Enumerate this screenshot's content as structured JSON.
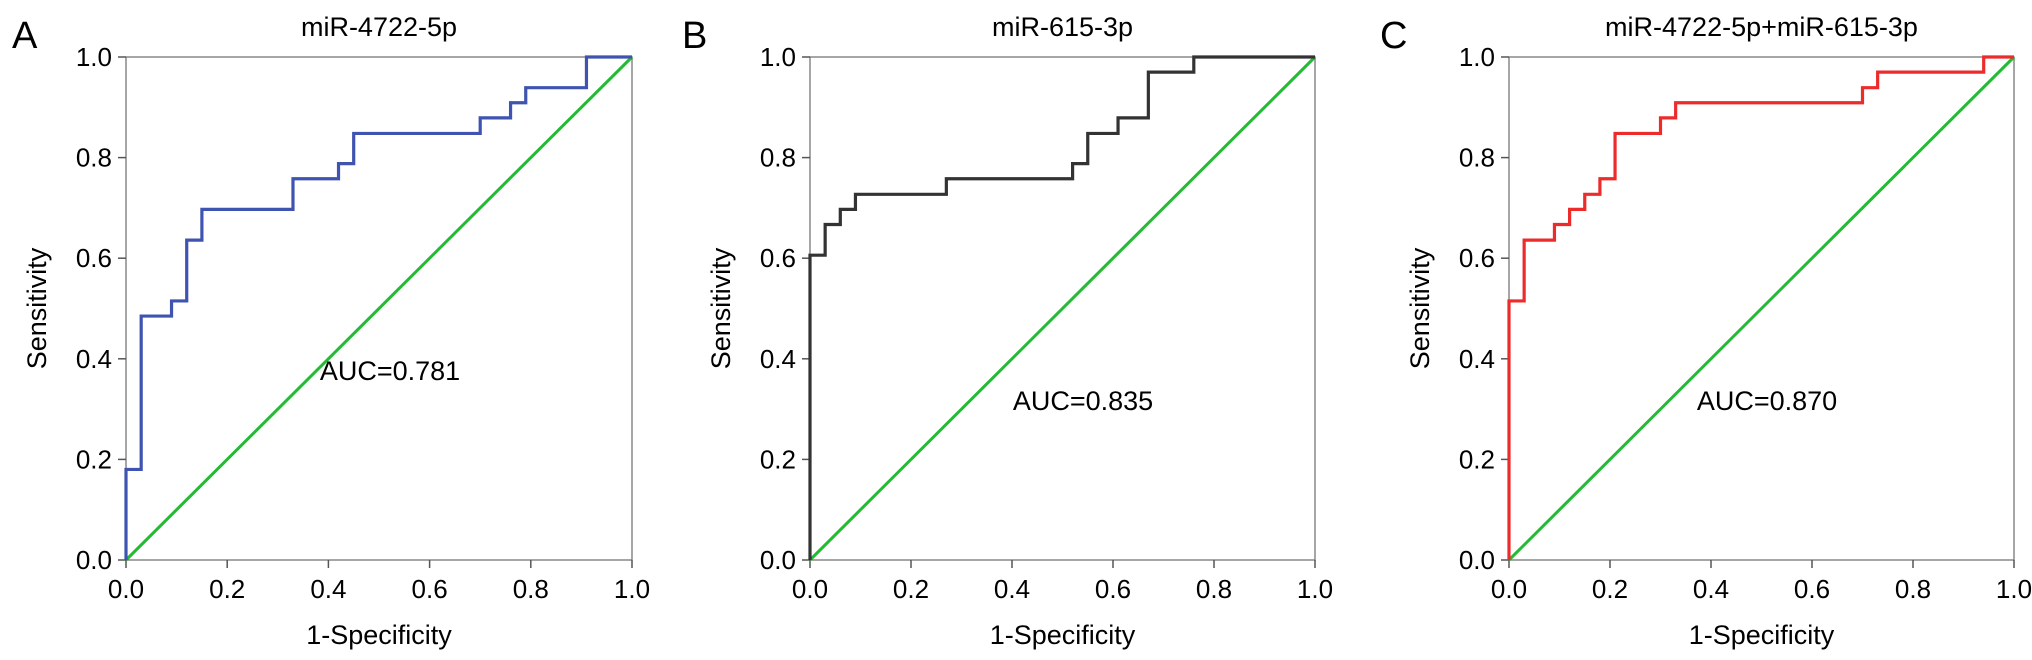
{
  "chart_data": [
    {
      "type": "line",
      "panel": "A",
      "title": "miR-4722-5p",
      "xlabel": "1-Specificity",
      "ylabel": "Sensitivity",
      "xlim": [
        0,
        1
      ],
      "ylim": [
        0,
        1
      ],
      "xticks": [
        "0.0",
        "0.2",
        "0.4",
        "0.6",
        "0.8",
        "1.0"
      ],
      "yticks": [
        "0.0",
        "0.2",
        "0.4",
        "0.6",
        "0.8",
        "1.0"
      ],
      "annotation": "AUC=0.781",
      "grid": false,
      "series": [
        {
          "role": "roc",
          "color": "#3f54b0",
          "x": [
            0.0,
            0.0,
            0.03,
            0.03,
            0.09,
            0.09,
            0.12,
            0.12,
            0.15,
            0.15,
            0.33,
            0.33,
            0.42,
            0.42,
            0.45,
            0.45,
            0.7,
            0.7,
            0.76,
            0.76,
            0.79,
            0.79,
            0.91,
            0.91,
            1.0
          ],
          "y": [
            0.0,
            0.18,
            0.18,
            0.485,
            0.485,
            0.515,
            0.515,
            0.636,
            0.636,
            0.697,
            0.697,
            0.758,
            0.758,
            0.788,
            0.788,
            0.848,
            0.848,
            0.879,
            0.879,
            0.909,
            0.909,
            0.939,
            0.939,
            1.0,
            1.0
          ]
        },
        {
          "role": "reference",
          "color": "#22bb33",
          "x": [
            0,
            1
          ],
          "y": [
            0,
            1
          ]
        }
      ]
    },
    {
      "type": "line",
      "panel": "B",
      "title": "miR-615-3p",
      "xlabel": "1-Specificity",
      "ylabel": "Sensitivity",
      "xlim": [
        0,
        1
      ],
      "ylim": [
        0,
        1
      ],
      "xticks": [
        "0.0",
        "0.2",
        "0.4",
        "0.6",
        "0.8",
        "1.0"
      ],
      "yticks": [
        "0.0",
        "0.2",
        "0.4",
        "0.6",
        "0.8",
        "1.0"
      ],
      "annotation": "AUC=0.835",
      "grid": false,
      "series": [
        {
          "role": "roc",
          "color": "#333333",
          "x": [
            0.0,
            0.0,
            0.03,
            0.03,
            0.06,
            0.06,
            0.09,
            0.09,
            0.27,
            0.27,
            0.52,
            0.52,
            0.55,
            0.55,
            0.61,
            0.61,
            0.67,
            0.67,
            0.76,
            0.76,
            1.0
          ],
          "y": [
            0.0,
            0.606,
            0.606,
            0.667,
            0.667,
            0.697,
            0.697,
            0.727,
            0.727,
            0.758,
            0.758,
            0.788,
            0.788,
            0.848,
            0.848,
            0.879,
            0.879,
            0.97,
            0.97,
            1.0,
            1.0
          ]
        },
        {
          "role": "reference",
          "color": "#22bb33",
          "x": [
            0,
            1
          ],
          "y": [
            0,
            1
          ]
        }
      ]
    },
    {
      "type": "line",
      "panel": "C",
      "title": "miR-4722-5p+miR-615-3p",
      "xlabel": "1-Specificity",
      "ylabel": "Sensitivity",
      "xlim": [
        0,
        1
      ],
      "ylim": [
        0,
        1
      ],
      "xticks": [
        "0.0",
        "0.2",
        "0.4",
        "0.6",
        "0.8",
        "1.0"
      ],
      "yticks": [
        "0.0",
        "0.2",
        "0.4",
        "0.6",
        "0.8",
        "1.0"
      ],
      "annotation": "AUC=0.870",
      "grid": false,
      "series": [
        {
          "role": "roc",
          "color": "#ee2b2b",
          "x": [
            0.0,
            0.0,
            0.03,
            0.03,
            0.09,
            0.09,
            0.12,
            0.12,
            0.15,
            0.15,
            0.18,
            0.18,
            0.21,
            0.21,
            0.3,
            0.3,
            0.33,
            0.33,
            0.7,
            0.7,
            0.73,
            0.73,
            0.94,
            0.94,
            1.0
          ],
          "y": [
            0.0,
            0.515,
            0.515,
            0.636,
            0.636,
            0.667,
            0.667,
            0.697,
            0.697,
            0.727,
            0.727,
            0.758,
            0.758,
            0.848,
            0.848,
            0.879,
            0.879,
            0.909,
            0.909,
            0.939,
            0.939,
            0.97,
            0.97,
            1.0,
            1.0
          ]
        },
        {
          "role": "reference",
          "color": "#22bb33",
          "x": [
            0,
            1
          ],
          "y": [
            0,
            1
          ]
        }
      ]
    }
  ]
}
